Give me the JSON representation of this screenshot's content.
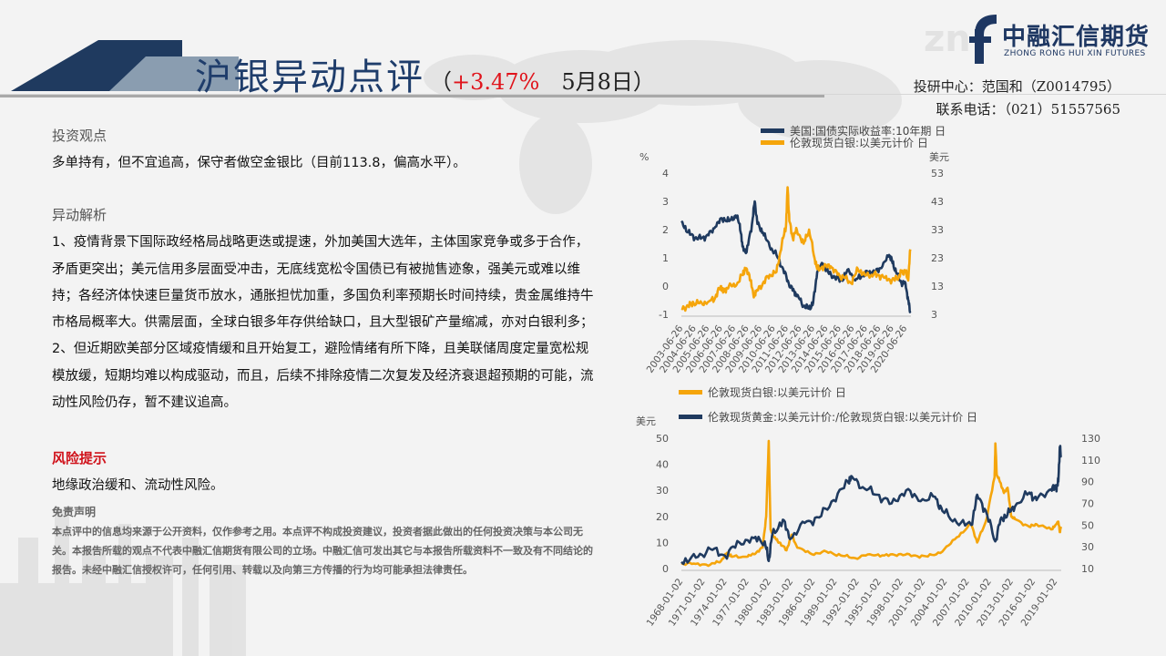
{
  "header": {
    "title_main": "沪银异动点评",
    "paren_open": "（",
    "change": "+3.47%",
    "date": "5月8日）",
    "logo_cn": "中融汇信期货",
    "logo_en": "ZHONG RONG HUI XIN FUTURES",
    "contact_line1": "投研中心：范国和（Z0014795）",
    "contact_line2": "联系电话：（021）51557565"
  },
  "body": {
    "view_title": "投资观点",
    "view_text": "多单持有，但不宜追高，保守者做空金银比（目前113.8，偏高水平）。",
    "analysis_title": "异动解析",
    "analysis_p1": "1、疫情背景下国际政经格局战略更迭或提速，外加美国大选年，主体国家竞争或多于合作，矛盾更突出；美元信用多层面受冲击，无底线宽松令国债已有被抛售迹象，强美元或难以维持；各经济体快速巨量货币放水，通胀担忧加重，多国负利率预期长时间持续，贵金属维持牛市格局概率大。供需层面，全球白银多年存供给缺口，且大型银矿产量缩减，亦对白银利多；",
    "analysis_p2": "2、但近期欧美部分区域疫情缓和且开始复工，避险情绪有所下降，且美联储周度定量宽松规模放缓，短期均难以构成驱动，而且，后续不排除疫情二次复发及经济衰退超预期的可能，流动性风险仍存，暂不建议追高。",
    "risk_title": "风险提示",
    "risk_text": "地缘政治缓和、流动性风险。",
    "disclaimer_title": "免责声明",
    "disclaimer_text": "本点评中的信息均来源于公开资料，仅作参考之用。本点评不构成投资建议，投资者据此做出的任何投资决策与本公司无关。本报告所载的观点不代表中融汇信期货有限公司的立场。中融汇信可发出其它与本报告所载资料不一致及有不同结论的报告。未经中融汇信授权许可，任何引用、转载以及向第三方传播的行为均可能承担法律责任。"
  },
  "colors": {
    "navy": "#1f3a5f",
    "gold": "#f5a50b",
    "red": "#e0141c",
    "brand": "#1e3762"
  },
  "chart_data": [
    {
      "type": "line",
      "legend_position": "top",
      "left_unit": "%",
      "right_unit": "美元",
      "y_left_range": [
        -1,
        4
      ],
      "y_right_range": [
        3,
        53
      ],
      "y_left_ticks": [
        "4",
        "3",
        "2",
        "1",
        "0",
        "-1"
      ],
      "y_right_ticks": [
        "53",
        "43",
        "33",
        "23",
        "13",
        "3"
      ],
      "x_ticks": [
        "2003-06-26",
        "2004-06-26",
        "2005-06-26",
        "2006-06-26",
        "2007-06-26",
        "2008-06-26",
        "2009-06-26",
        "2010-06-26",
        "2011-06-26",
        "2012-06-26",
        "2013-06-26",
        "2014-06-26",
        "2015-06-26",
        "2016-06-26",
        "2017-06-26",
        "2018-06-26",
        "2019-06-26",
        "2020-06-26"
      ],
      "series": [
        {
          "name": "美国:国债实际收益率:10年期 日",
          "axis": "left",
          "color": "#1f3a5f",
          "x": [
            2003.5,
            2004.0,
            2004.5,
            2005.0,
            2005.5,
            2006.0,
            2006.5,
            2007.0,
            2007.5,
            2007.8,
            2008.0,
            2008.3,
            2008.7,
            2008.9,
            2009.1,
            2009.5,
            2010.0,
            2010.5,
            2011.0,
            2011.4,
            2011.8,
            2012.0,
            2012.5,
            2012.9,
            2013.2,
            2013.5,
            2013.9,
            2014.3,
            2014.8,
            2015.3,
            2015.8,
            2016.3,
            2016.8,
            2017.3,
            2017.8,
            2018.3,
            2018.8,
            2019.0,
            2019.3,
            2019.7,
            2020.0,
            2020.2,
            2020.35
          ],
          "values": [
            2.3,
            1.9,
            1.7,
            1.7,
            1.8,
            2.1,
            2.4,
            2.3,
            2.5,
            2.2,
            1.4,
            1.2,
            2.2,
            3.0,
            2.2,
            1.9,
            1.4,
            1.1,
            0.6,
            0.1,
            -0.2,
            -0.3,
            -0.7,
            -0.8,
            -0.6,
            0.5,
            0.8,
            0.5,
            0.3,
            0.2,
            0.6,
            0.2,
            0.4,
            0.5,
            0.5,
            0.7,
            1.1,
            0.9,
            0.5,
            0.1,
            0.1,
            -0.5,
            -0.9
          ]
        },
        {
          "name": "伦敦现货白银:以美元计价 日",
          "axis": "right",
          "color": "#f5a50b",
          "x": [
            2003.5,
            2004.0,
            2004.4,
            2005.0,
            2005.5,
            2006.0,
            2006.4,
            2006.6,
            2007.0,
            2007.5,
            2008.0,
            2008.2,
            2008.5,
            2008.8,
            2009.0,
            2009.5,
            2010.0,
            2010.5,
            2010.9,
            2011.2,
            2011.32,
            2011.45,
            2011.7,
            2012.0,
            2012.5,
            2012.9,
            2013.3,
            2013.5,
            2014.0,
            2014.5,
            2015.0,
            2015.5,
            2016.0,
            2016.5,
            2017.0,
            2017.5,
            2018.0,
            2018.5,
            2019.0,
            2019.5,
            2019.7,
            2020.0,
            2020.2,
            2020.35
          ],
          "values": [
            5,
            6,
            7,
            7,
            7.5,
            9,
            13,
            11,
            13,
            13,
            17,
            19,
            17,
            10,
            11,
            14,
            17,
            18,
            28,
            34,
            48,
            36,
            30,
            33,
            28,
            33,
            23,
            19,
            20,
            20,
            17,
            16,
            14,
            19,
            17,
            17,
            17,
            16,
            15,
            16,
            18,
            18,
            15,
            26
          ]
        }
      ]
    },
    {
      "type": "line",
      "legend_position": "top",
      "left_unit": "美元",
      "y_left_range": [
        0,
        50
      ],
      "y_right_range": [
        10,
        130
      ],
      "y_left_ticks": [
        "50",
        "40",
        "30",
        "20",
        "10",
        "0"
      ],
      "y_right_ticks": [
        "130",
        "110",
        "90",
        "70",
        "50",
        "30",
        "10"
      ],
      "x_ticks": [
        "1968-01-02",
        "1971-01-02",
        "1974-01-02",
        "1977-01-02",
        "1980-01-02",
        "1983-01-02",
        "1986-01-02",
        "1989-01-02",
        "1992-01-02",
        "1995-01-02",
        "1998-01-02",
        "2001-01-02",
        "2004-01-02",
        "2007-01-02",
        "2010-01-02",
        "2013-01-02",
        "2016-01-02",
        "2019-01-02"
      ],
      "series": [
        {
          "name": "伦敦现货白银:以美元计价 日",
          "axis": "left",
          "color": "#f5a50b",
          "x": [
            1968,
            1970,
            1972,
            1973.5,
            1974.3,
            1975,
            1977,
            1978,
            1979.2,
            1979.7,
            1980.05,
            1980.3,
            1980.8,
            1981.5,
            1982.5,
            1983.2,
            1984,
            1986,
            1988,
            1990,
            1992,
            1994,
            1996,
            1998,
            2000,
            2002,
            2004,
            2006,
            2008,
            2008.8,
            2010,
            2011.2,
            2011.32,
            2011.5,
            2012,
            2012.5,
            2013,
            2013.5,
            2014,
            2016,
            2017,
            2019,
            2019.7,
            2020,
            2020.2,
            2020.35
          ],
          "values": [
            2,
            1.8,
            1.5,
            3,
            6,
            4.5,
            4.5,
            5.5,
            8,
            20,
            49,
            15,
            12,
            10,
            7,
            13,
            8,
            5.5,
            6.5,
            5,
            4,
            5.5,
            5,
            5.5,
            5,
            4.6,
            6.5,
            12,
            17,
            10,
            18,
            35,
            48,
            36,
            33,
            29,
            31,
            20,
            19,
            16,
            17,
            15,
            17,
            18,
            14,
            16
          ]
        },
        {
          "name": "伦敦现货黄金:以美元计价:/伦敦现货白银:以美元计价 日",
          "axis": "right",
          "color": "#1f3a5f",
          "x": [
            1968,
            1970,
            1972,
            1974,
            1976,
            1978,
            1979.5,
            1980.05,
            1980.5,
            1982,
            1983,
            1985,
            1987,
            1989,
            1991,
            1991.5,
            1993,
            1995,
            1997,
            1999,
            2001,
            2003,
            2004,
            2006,
            2008,
            2008.8,
            2010,
            2011.3,
            2012,
            2013,
            2014,
            2016,
            2017,
            2019,
            2019.7,
            2020,
            2020.2,
            2020.35
          ],
          "values": [
            16,
            20,
            28,
            22,
            34,
            38,
            35,
            17,
            40,
            55,
            37,
            52,
            57,
            73,
            90,
            95,
            85,
            78,
            70,
            82,
            72,
            76,
            63,
            52,
            50,
            78,
            63,
            35,
            55,
            60,
            67,
            80,
            73,
            83,
            85,
            90,
            122,
            114
          ]
        }
      ]
    }
  ]
}
